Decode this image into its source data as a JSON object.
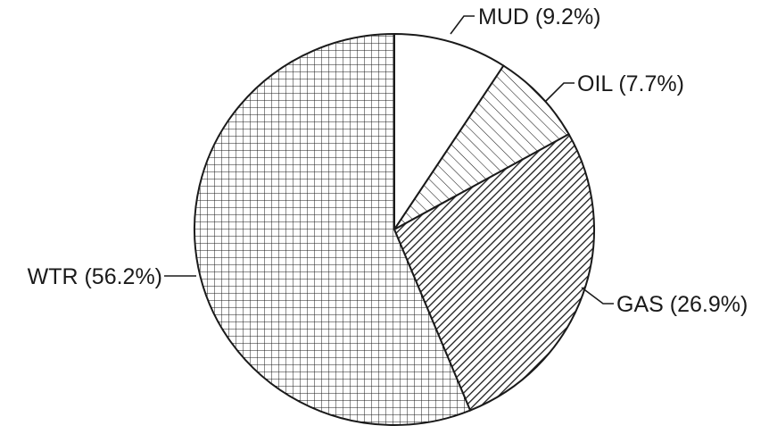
{
  "chart_data": {
    "type": "pie",
    "title": "",
    "start": "top",
    "direction": "clockwise",
    "slices": [
      {
        "label": "MUD (9.2%)",
        "value": 9.2,
        "pattern": "blank"
      },
      {
        "label": "OIL (7.7%)",
        "value": 7.7,
        "pattern": "sparse-diagonal-hatch"
      },
      {
        "label": "GAS (26.9%)",
        "value": 26.9,
        "pattern": "dense-diagonal-hatch"
      },
      {
        "label": "WTR (56.2%)",
        "value": 56.2,
        "pattern": "crosshatch-grid"
      }
    ]
  }
}
